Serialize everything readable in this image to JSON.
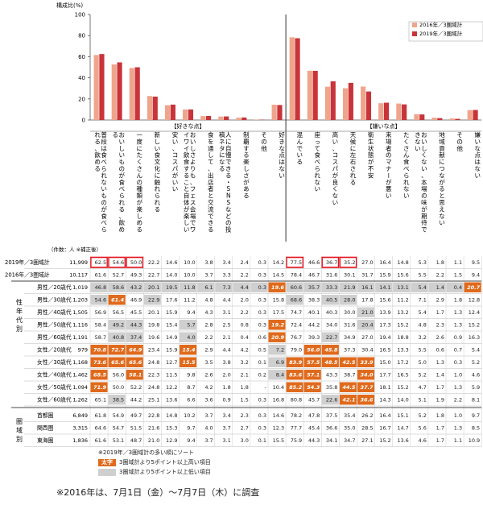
{
  "chart_data": {
    "type": "bar",
    "ylabel": "構成比(%)",
    "ylim": [
      0,
      100
    ],
    "yticks": [
      0,
      20,
      40,
      60,
      80,
      100
    ],
    "legend": [
      "2016年／3圏域計",
      "2019年／3圏域計"
    ],
    "colors": {
      "s2016": "#efa58c",
      "s2019": "#c8343a",
      "hl_dark": "#e06a1c",
      "hl_gray": "#cfcfcf",
      "box": "#e8101a"
    },
    "group_labels": [
      "【好きな点】",
      "【嫌いな点】"
    ],
    "categories": [
      "普段は食べられないものが食べられる、飲める",
      "おいしいものが食べられる、飲める",
      "一度にたくさんの種類が楽しめる",
      "新しい食文化に触れられる",
      "安い、コスパがいい",
      "おいしさよりも、フェス会場でワイワイ飲食すること自体が楽しい",
      "食を通して、出店者と交流できる",
      "人に自慢できる・SNSなどの投稿ネタになる",
      "制覇する楽しさがある",
      "その他",
      "好きな点はない",
      "混んでいる",
      "座って食べられない",
      "高い、コスパが良くない",
      "天候に左右される",
      "衛生状態が不安",
      "来場者のマナーが悪い",
      "たくさん食べられない",
      "おいしくない、本場の味が期待できない",
      "地域貢献につながると思えない",
      "その他",
      "嫌いな点はない"
    ],
    "series": [
      {
        "name": "2016年／3圏域計",
        "values": [
          61.6,
          52.7,
          49.3,
          22.7,
          14.0,
          10.0,
          3.7,
          3.3,
          2.2,
          0.3,
          14.5,
          78.4,
          46.7,
          31.6,
          30.1,
          31.7,
          15.9,
          15.6,
          5.5,
          2.2,
          1.5,
          9.4
        ]
      },
      {
        "name": "2019年／3圏域計",
        "values": [
          62.5,
          54.6,
          50.0,
          22.2,
          14.6,
          10.0,
          3.8,
          3.4,
          2.4,
          0.3,
          14.2,
          77.5,
          46.6,
          36.7,
          35.2,
          27.0,
          16.4,
          14.8,
          5.3,
          1.8,
          1.1,
          9.5
        ]
      }
    ]
  },
  "table": {
    "sample_header": "（件数：人 ※補正後）",
    "rows": [
      {
        "label": "2019年／3圏域計",
        "n": "11,999",
        "v": [
          "62.5",
          "54.6",
          "50.0",
          "22.2",
          "14.6",
          "10.0",
          "3.8",
          "3.4",
          "2.4",
          "0.3",
          "14.2",
          "77.5",
          "46.6",
          "36.7",
          "35.2",
          "27.0",
          "16.4",
          "14.8",
          "5.3",
          "1.8",
          "1.1",
          "9.5"
        ],
        "hl": "",
        "boxed": [
          0,
          1,
          2,
          11,
          13,
          14
        ]
      },
      {
        "label": "2016年／3圏域計",
        "n": "10,117",
        "v": [
          "61.6",
          "52.7",
          "49.3",
          "22.7",
          "14.0",
          "10.0",
          "3.7",
          "3.3",
          "2.2",
          "0.3",
          "14.5",
          "78.4",
          "46.7",
          "31.6",
          "30.1",
          "31.7",
          "15.9",
          "15.6",
          "5.5",
          "2.2",
          "1.5",
          "9.4"
        ],
        "hl": ""
      },
      {
        "label": "男性／20歳代",
        "n": "1,019",
        "v": [
          "46.8",
          "58.6",
          "43.2",
          "20.1",
          "19.5",
          "11.8",
          "6.1",
          "7.3",
          "4.4",
          "0.3",
          "19.6",
          "60.6",
          "35.7",
          "33.3",
          "21.9",
          "16.1",
          "14.1",
          "13.1",
          "5.4",
          "1.4",
          "0.4",
          "20.7"
        ],
        "hl": "GGGGGGGGGGOGGGGGGGGGGO"
      },
      {
        "label": "男性／30歳代",
        "n": "1,203",
        "v": [
          "54.6",
          "61.4",
          "46.9",
          "22.9",
          "17.6",
          "11.2",
          "4.8",
          "4.4",
          "2.0",
          "0.3",
          "15.8",
          "68.6",
          "38.3",
          "40.5",
          "28.0",
          "17.8",
          "15.6",
          "11.2",
          "7.1",
          "2.9",
          "1.8",
          "12.8"
        ],
        "hl": "GONGNNNNNNNGNGGNNNNNNN"
      },
      {
        "label": "男性／40歳代",
        "n": "1,505",
        "v": [
          "56.9",
          "56.5",
          "45.5",
          "20.1",
          "15.9",
          "9.4",
          "4.3",
          "3.1",
          "2.2",
          "0.3",
          "17.5",
          "74.7",
          "40.1",
          "40.3",
          "30.0",
          "21.0",
          "13.9",
          "13.2",
          "5.4",
          "1.7",
          "1.3",
          "12.4"
        ],
        "hl": "NNNNNNNNNNNNNNNGNNNNNN"
      },
      {
        "label": "男性／50歳代",
        "n": "1,116",
        "v": [
          "58.4",
          "49.2",
          "44.3",
          "19.8",
          "15.4",
          "5.7",
          "2.8",
          "2.5",
          "0.8",
          "0.3",
          "19.2",
          "72.4",
          "44.2",
          "34.0",
          "31.6",
          "20.4",
          "17.3",
          "15.2",
          "4.8",
          "2.3",
          "1.3",
          "15.2"
        ],
        "hl": "NGGNNGNNNNONNNNGNNNNNN"
      },
      {
        "label": "男性／60歳代",
        "n": "1,191",
        "v": [
          "58.7",
          "40.8",
          "37.4",
          "19.6",
          "14.9",
          "4.0",
          "2.2",
          "2.1",
          "0.4",
          "0.6",
          "20.9",
          "76.7",
          "39.3",
          "22.7",
          "34.9",
          "27.0",
          "19.4",
          "18.8",
          "3.2",
          "2.6",
          "0.9",
          "16.3"
        ],
        "hl": "NGGNNGNNNNONNGNNNNNNNN"
      },
      {
        "label": "女性／20歳代",
        "n": "979",
        "v": [
          "70.8",
          "72.7",
          "64.9",
          "23.4",
          "15.9",
          "15.4",
          "2.9",
          "4.4",
          "4.2",
          "0.5",
          "7.2",
          "79.0",
          "56.0",
          "45.8",
          "37.3",
          "30.4",
          "16.5",
          "13.3",
          "5.5",
          "0.6",
          "0.7",
          "5.4"
        ],
        "hl": "OOONNONNNNGNOONNNNNNNN"
      },
      {
        "label": "女性／30歳代",
        "n": "1,168",
        "v": [
          "73.6",
          "65.6",
          "65.6",
          "24.8",
          "12.7",
          "15.5",
          "3.5",
          "3.8",
          "3.2",
          "0.1",
          "6.9",
          "83.9",
          "57.5",
          "48.5",
          "42.5",
          "33.9",
          "15.0",
          "17.2",
          "5.0",
          "1.3",
          "0.3",
          "5.2"
        ],
        "hl": "OOONNONNNNGOOOOONNNNNN"
      },
      {
        "label": "女性／40歳代",
        "n": "1,462",
        "v": [
          "68.5",
          "56.0",
          "58.1",
          "22.3",
          "11.5",
          "9.8",
          "2.6",
          "2.0",
          "2.1",
          "0.2",
          "8.4",
          "83.6",
          "57.1",
          "43.3",
          "38.7",
          "34.0",
          "17.7",
          "16.5",
          "5.2",
          "1.4",
          "1.0",
          "4.6"
        ],
        "hl": "ONONNNNNNNGOONNONNNNNN"
      },
      {
        "label": "女性／50歳代",
        "n": "1,094",
        "v": [
          "71.9",
          "50.0",
          "52.2",
          "24.8",
          "12.2",
          "8.7",
          "4.2",
          "1.8",
          "1.8",
          "-",
          "10.4",
          "85.2",
          "54.3",
          "35.8",
          "44.5",
          "37.7",
          "18.1",
          "15.2",
          "4.7",
          "1.7",
          "1.3",
          "5.9"
        ],
        "hl": "ONNNNNNNNNNOONOONNNNNN"
      },
      {
        "label": "女性／60歳代",
        "n": "1,262",
        "v": [
          "65.1",
          "38.5",
          "44.2",
          "25.1",
          "13.6",
          "6.6",
          "3.6",
          "0.9",
          "1.5",
          "0.3",
          "16.8",
          "80.8",
          "45.7",
          "22.6",
          "42.1",
          "36.6",
          "14.3",
          "14.0",
          "5.1",
          "1.9",
          "2.2",
          "8.1"
        ],
        "hl": "NGNNNNNNNNNNNGOONNNNNN"
      },
      {
        "label": "首都圏",
        "n": "6,849",
        "v": [
          "61.8",
          "54.9",
          "49.7",
          "22.8",
          "14.8",
          "10.2",
          "3.7",
          "3.4",
          "2.3",
          "0.3",
          "14.6",
          "78.2",
          "47.8",
          "37.5",
          "35.4",
          "26.2",
          "16.4",
          "15.1",
          "5.2",
          "1.8",
          "1.0",
          "9.7"
        ],
        "hl": ""
      },
      {
        "label": "関西圏",
        "n": "3,315",
        "v": [
          "64.6",
          "54.7",
          "51.5",
          "21.6",
          "15.3",
          "9.7",
          "4.0",
          "3.7",
          "2.7",
          "0.3",
          "12.3",
          "77.7",
          "45.4",
          "36.6",
          "35.0",
          "28.5",
          "16.7",
          "14.7",
          "5.6",
          "1.7",
          "1.3",
          "8.5"
        ],
        "hl": ""
      },
      {
        "label": "東海圏",
        "n": "1,836",
        "v": [
          "61.6",
          "53.1",
          "48.7",
          "21.0",
          "12.9",
          "9.4",
          "3.7",
          "3.1",
          "3.0",
          "0.1",
          "15.5",
          "75.9",
          "44.3",
          "34.1",
          "34.7",
          "27.1",
          "15.2",
          "13.6",
          "4.6",
          "1.7",
          "1.1",
          "10.9"
        ],
        "hl": ""
      }
    ],
    "side_labels": [
      "性年代別",
      "圏域別"
    ]
  },
  "notes": {
    "sort_note": "※2019年／3圏域計の多い順にソート",
    "legend_high_swatch": "太字",
    "legend_high": "3圏域計より5ポイント以上高い項目",
    "legend_low": "3圏域計より5ポイント以上低い項目",
    "footer": "※2016年は、7月1日（金）〜7月7日（木）に調査"
  }
}
